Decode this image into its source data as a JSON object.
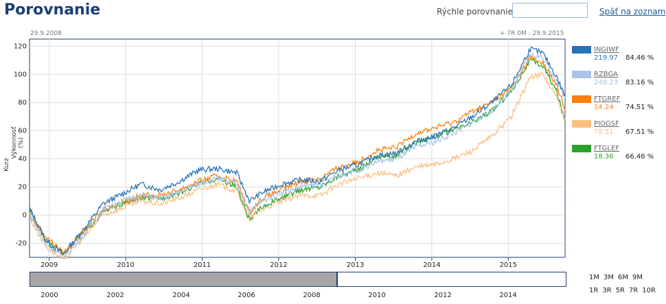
{
  "page": {
    "title": "Porovnanie"
  },
  "quick": {
    "label": "Rýchle porovnanie",
    "value": ""
  },
  "back_link": "Späť na zoznam",
  "range": {
    "start": "29.9.2008",
    "end": "+ 7R 0M : 29.9.2015"
  },
  "axis": {
    "ylabel": "Výkonnosť (%)",
    "ylabel2": "Kurz"
  },
  "legend": [
    {
      "name": "INGIWF",
      "price": "219.97",
      "pct": "84.46 %",
      "color": "#2a72b5"
    },
    {
      "name": "RZBGA",
      "price": "248.23",
      "pct": "83.16 %",
      "color": "#a8c4ea"
    },
    {
      "name": "FTGREF",
      "price": "14.24",
      "pct": "74.51 %",
      "color": "#ff7f0e"
    },
    {
      "name": "PIOGSF",
      "price": "78.51",
      "pct": "67.51 %",
      "color": "#f9bf80"
    },
    {
      "name": "FTGLEF",
      "price": "18.36",
      "pct": "66.46 %",
      "color": "#2ca02c"
    }
  ],
  "navigator": {
    "years": [
      "2000",
      "2002",
      "2004",
      "2006",
      "2008",
      "2010",
      "2012",
      "2014"
    ],
    "periods_row1": [
      "1M",
      "3M",
      "6M",
      "9M"
    ],
    "periods_row2": [
      "1R",
      "3R",
      "5R",
      "7R",
      "10R"
    ]
  },
  "chart_data": {
    "type": "line",
    "x_labels": [
      "2009",
      "2010",
      "2011",
      "2012",
      "2013",
      "2014",
      "2015"
    ],
    "ylim": [
      -30,
      125
    ],
    "yticks": [
      -20,
      0,
      20,
      40,
      60,
      80,
      100,
      120
    ],
    "x_dates": [
      "2008-09-29",
      "2008-12-15",
      "2009-03-09",
      "2009-06-15",
      "2009-09-15",
      "2009-12-15",
      "2010-03-15",
      "2010-06-15",
      "2010-09-15",
      "2010-12-15",
      "2011-03-15",
      "2011-06-15",
      "2011-08-15",
      "2011-10-15",
      "2012-01-15",
      "2012-04-15",
      "2012-07-15",
      "2012-10-15",
      "2013-01-15",
      "2013-04-15",
      "2013-07-15",
      "2013-10-15",
      "2014-01-15",
      "2014-04-15",
      "2014-07-15",
      "2014-10-15",
      "2015-01-15",
      "2015-04-15",
      "2015-06-15",
      "2015-08-20",
      "2015-09-29"
    ],
    "series": [
      {
        "name": "INGIWF",
        "values": [
          5,
          -18,
          -28,
          -10,
          8,
          15,
          22,
          18,
          24,
          32,
          33,
          30,
          10,
          16,
          22,
          25,
          24,
          32,
          36,
          42,
          44,
          52,
          56,
          62,
          70,
          80,
          92,
          118,
          115,
          98,
          84.46
        ]
      },
      {
        "name": "RZBGA",
        "values": [
          0,
          -20,
          -30,
          -14,
          4,
          10,
          14,
          12,
          16,
          22,
          26,
          22,
          2,
          10,
          16,
          20,
          22,
          28,
          32,
          38,
          40,
          48,
          52,
          58,
          66,
          74,
          88,
          114,
          112,
          95,
          83.16
        ]
      },
      {
        "name": "FTGREF",
        "values": [
          0,
          -15,
          -27,
          -12,
          4,
          9,
          14,
          14,
          18,
          24,
          28,
          24,
          2,
          12,
          18,
          24,
          26,
          34,
          38,
          46,
          48,
          58,
          62,
          66,
          74,
          80,
          90,
          112,
          108,
          92,
          74.51
        ]
      },
      {
        "name": "PIOGSF",
        "values": [
          -2,
          -22,
          -32,
          -16,
          0,
          5,
          10,
          8,
          12,
          18,
          22,
          17,
          -2,
          4,
          10,
          14,
          14,
          22,
          26,
          30,
          28,
          34,
          36,
          40,
          46,
          56,
          70,
          98,
          100,
          84,
          67.51
        ]
      },
      {
        "name": "FTGLEF",
        "values": [
          3,
          -17,
          -27,
          -12,
          2,
          8,
          12,
          12,
          16,
          22,
          26,
          20,
          -4,
          6,
          12,
          18,
          20,
          28,
          32,
          42,
          42,
          52,
          56,
          60,
          66,
          74,
          88,
          110,
          106,
          88,
          66.46
        ]
      }
    ]
  }
}
